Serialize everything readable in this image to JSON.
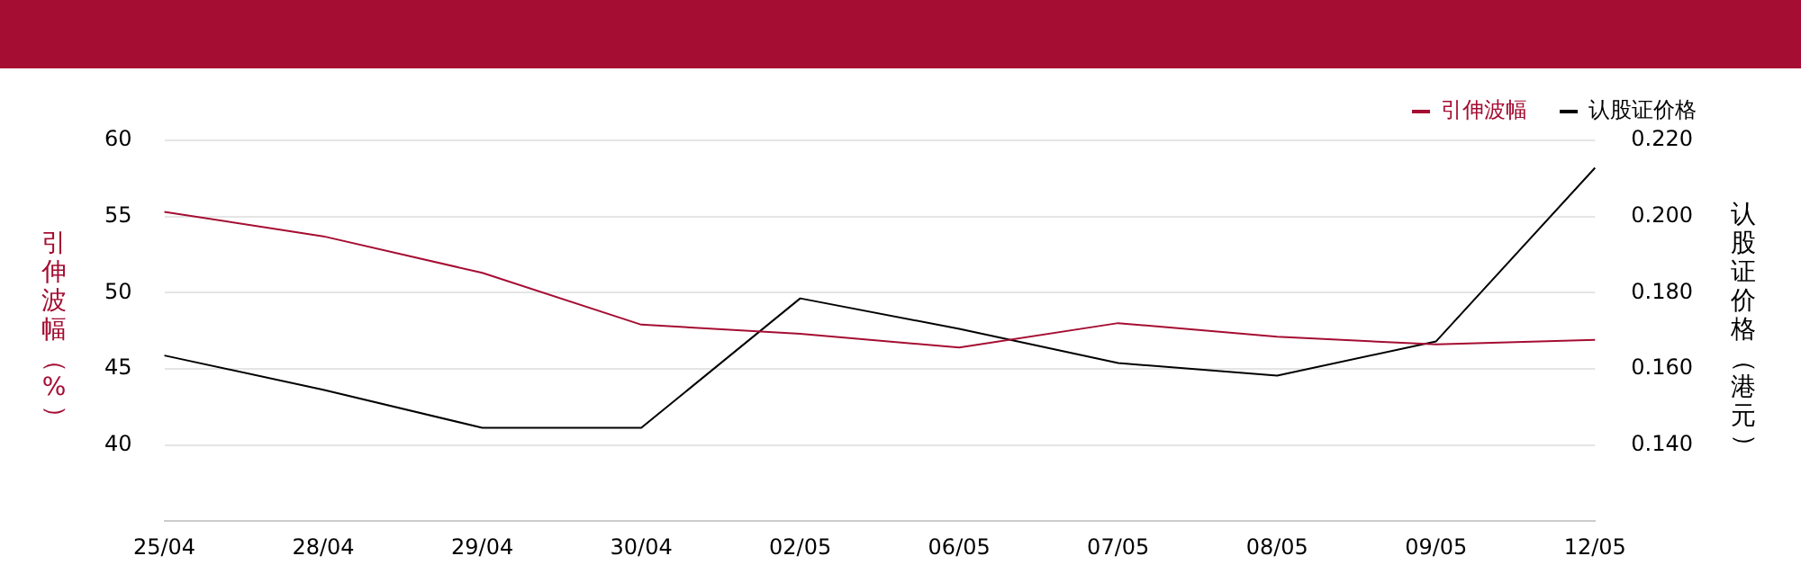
{
  "chart_data": {
    "type": "line",
    "ylabel": "引伸波幅（%）",
    "y2label": "认股证价格（港元）",
    "categories": [
      "25/04",
      "28/04",
      "29/04",
      "30/04",
      "02/05",
      "06/05",
      "07/05",
      "08/05",
      "09/05",
      "12/05"
    ],
    "series": [
      {
        "name": "引伸波幅",
        "color": "#a50d32",
        "values": [
          55.3,
          53.7,
          51.3,
          47.9,
          47.3,
          46.4,
          48.0,
          47.1,
          46.6,
          46.9
        ]
      },
      {
        "name": "认股证价格",
        "color": "#000000",
        "axis": "y2",
        "values": [
          0.1635,
          0.1545,
          0.1445,
          0.1445,
          0.1785,
          0.1705,
          0.1615,
          0.1582,
          0.1672,
          0.2128
        ]
      }
    ],
    "ylim": [
      35,
      60
    ],
    "yticks": [
      40,
      45,
      50,
      55,
      60
    ],
    "y2lim": [
      0.12,
      0.22
    ],
    "y2ticks": [
      {
        "value": 0.14,
        "label": "0.140"
      },
      {
        "value": 0.16,
        "label": "0.160"
      },
      {
        "value": 0.18,
        "label": "0.180"
      },
      {
        "value": 0.2,
        "label": "0.200"
      },
      {
        "value": 0.22,
        "label": "0.220"
      }
    ],
    "grid": "y",
    "legend": "top right",
    "marker": "none",
    "line_style": "solid"
  }
}
